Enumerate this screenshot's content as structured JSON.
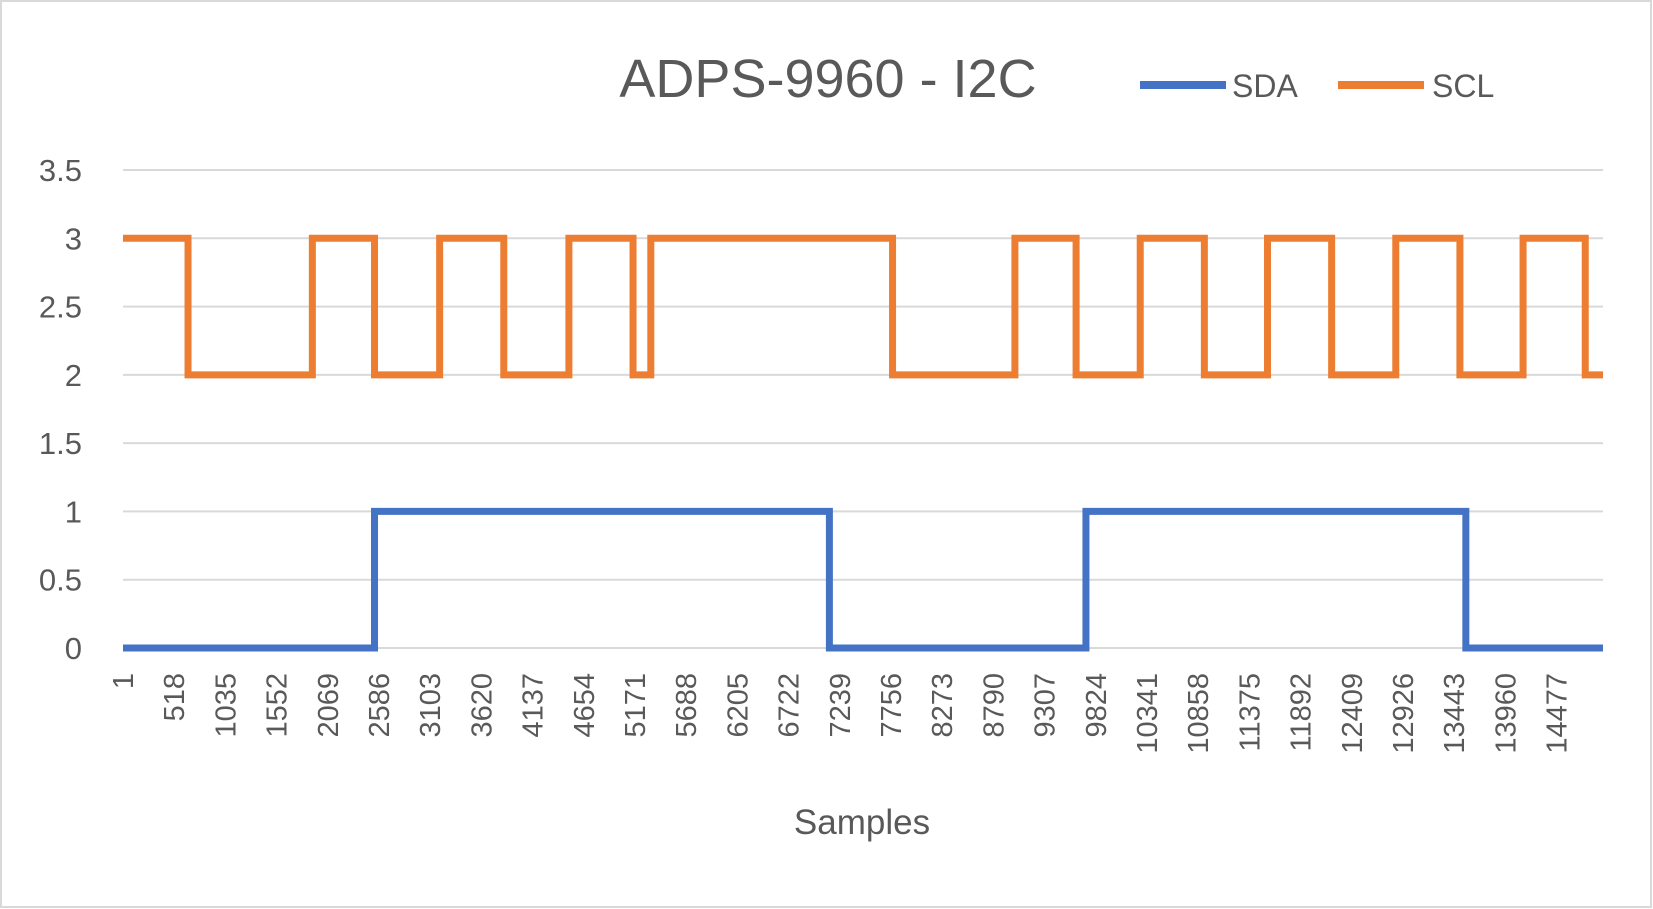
{
  "chart_data": {
    "type": "line",
    "title": "ADPS-9960 - I2C",
    "xlabel": "Samples",
    "ylabel": "",
    "ylim": [
      0,
      3.5
    ],
    "yticks": [
      "0",
      "0.5",
      "1",
      "1.5",
      "2",
      "2.5",
      "3",
      "3.5"
    ],
    "xticks": [
      "1",
      "518",
      "1035",
      "1552",
      "2069",
      "2586",
      "3103",
      "3620",
      "4137",
      "4654",
      "5171",
      "5688",
      "6205",
      "6722",
      "7239",
      "7756",
      "8273",
      "8790",
      "9307",
      "9824",
      "10341",
      "10858",
      "11375",
      "11892",
      "12409",
      "12926",
      "13443",
      "13960",
      "14477"
    ],
    "xlim": [
      1,
      15000
    ],
    "grid": true,
    "legend_position": "top-right",
    "series": [
      {
        "name": "SDA",
        "color": "#4472c4",
        "steps": [
          [
            1,
            0
          ],
          [
            2550,
            1
          ],
          [
            7160,
            0
          ],
          [
            9760,
            1
          ],
          [
            13610,
            0
          ],
          [
            15000,
            0
          ]
        ]
      },
      {
        "name": "SCL",
        "color": "#ed7d31",
        "steps": [
          [
            1,
            3
          ],
          [
            660,
            2
          ],
          [
            1920,
            3
          ],
          [
            2550,
            2
          ],
          [
            3210,
            3
          ],
          [
            3860,
            2
          ],
          [
            4520,
            3
          ],
          [
            5170,
            2
          ],
          [
            5350,
            3
          ],
          [
            7800,
            2
          ],
          [
            9040,
            3
          ],
          [
            9660,
            2
          ],
          [
            10310,
            3
          ],
          [
            10960,
            2
          ],
          [
            11600,
            3
          ],
          [
            12250,
            2
          ],
          [
            12900,
            3
          ],
          [
            13550,
            2
          ],
          [
            14190,
            3
          ],
          [
            14820,
            2
          ],
          [
            15000,
            2
          ]
        ]
      }
    ]
  }
}
